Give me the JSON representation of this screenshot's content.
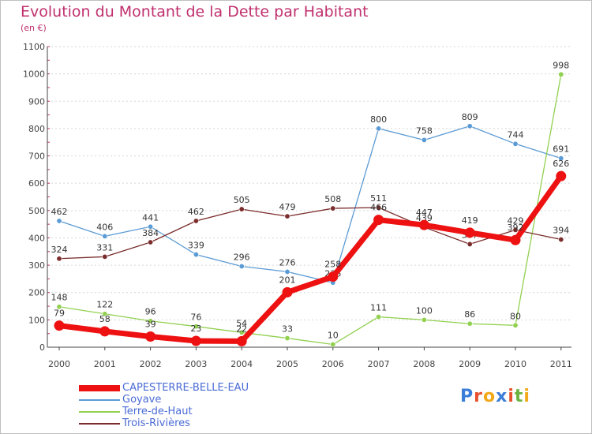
{
  "title": "Evolution du Montant de la Dette par Habitant",
  "unit": "(en €)",
  "logo": "Proxiti",
  "chart_data": {
    "type": "line",
    "title": "Evolution du Montant de la Dette par Habitant",
    "subtitle": "(en €)",
    "xlabel": "",
    "ylabel": "",
    "x": [
      "2000",
      "2001",
      "2002",
      "2003",
      "2004",
      "2005",
      "2006",
      "2007",
      "2008",
      "2009",
      "2010",
      "2011"
    ],
    "ylim": [
      0,
      1100
    ],
    "yticks": [
      0,
      100,
      200,
      300,
      400,
      500,
      600,
      700,
      800,
      900,
      1000,
      1100
    ],
    "grid": "horizontal dashed",
    "legend_position": "bottom-left",
    "series": [
      {
        "name": "CAPESTERRE-BELLE-EAU",
        "color": "#ee1111",
        "values": [
          79,
          58,
          39,
          23,
          22,
          201,
          258,
          466,
          447,
          419,
          392,
          626
        ]
      },
      {
        "name": "Goyave",
        "color": "#5b9bd5",
        "values": [
          462,
          406,
          441,
          339,
          296,
          276,
          236,
          800,
          758,
          809,
          744,
          691
        ]
      },
      {
        "name": "Terre-de-Haut",
        "color": "#92d050",
        "values": [
          148,
          122,
          96,
          76,
          54,
          33,
          10,
          111,
          100,
          86,
          80,
          998
        ]
      },
      {
        "name": "Trois-Rivières",
        "color": "#7b2c2c",
        "values": [
          324,
          331,
          384,
          462,
          505,
          479,
          508,
          511,
          439,
          377,
          429,
          394
        ]
      }
    ]
  }
}
